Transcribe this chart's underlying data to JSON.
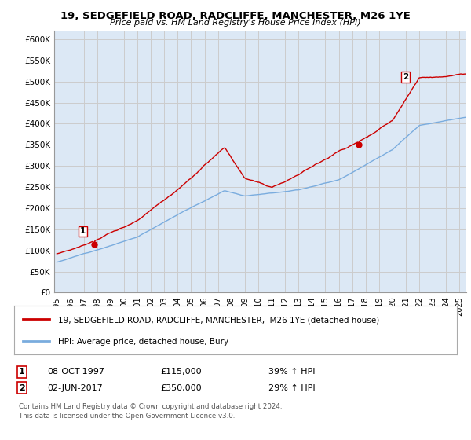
{
  "title": "19, SEDGEFIELD ROAD, RADCLIFFE, MANCHESTER, M26 1YE",
  "subtitle": "Price paid vs. HM Land Registry's House Price Index (HPI)",
  "ylim": [
    0,
    620000
  ],
  "yticks": [
    0,
    50000,
    100000,
    150000,
    200000,
    250000,
    300000,
    350000,
    400000,
    450000,
    500000,
    550000,
    600000
  ],
  "ytick_labels": [
    "£0",
    "£50K",
    "£100K",
    "£150K",
    "£200K",
    "£250K",
    "£300K",
    "£350K",
    "£400K",
    "£450K",
    "£500K",
    "£550K",
    "£600K"
  ],
  "grid_color": "#cccccc",
  "bg_color": "#dce8f5",
  "sale1_date": "08-OCT-1997",
  "sale1_price": 115000,
  "sale1_pct": "39%",
  "sale2_date": "02-JUN-2017",
  "sale2_price": 350000,
  "sale2_pct": "29%",
  "legend_label1": "19, SEDGEFIELD ROAD, RADCLIFFE, MANCHESTER,  M26 1YE (detached house)",
  "legend_label2": "HPI: Average price, detached house, Bury",
  "footer1": "Contains HM Land Registry data © Crown copyright and database right 2024.",
  "footer2": "This data is licensed under the Open Government Licence v3.0.",
  "property_color": "#cc0000",
  "hpi_color": "#7aacde",
  "marker_color": "#cc0000"
}
